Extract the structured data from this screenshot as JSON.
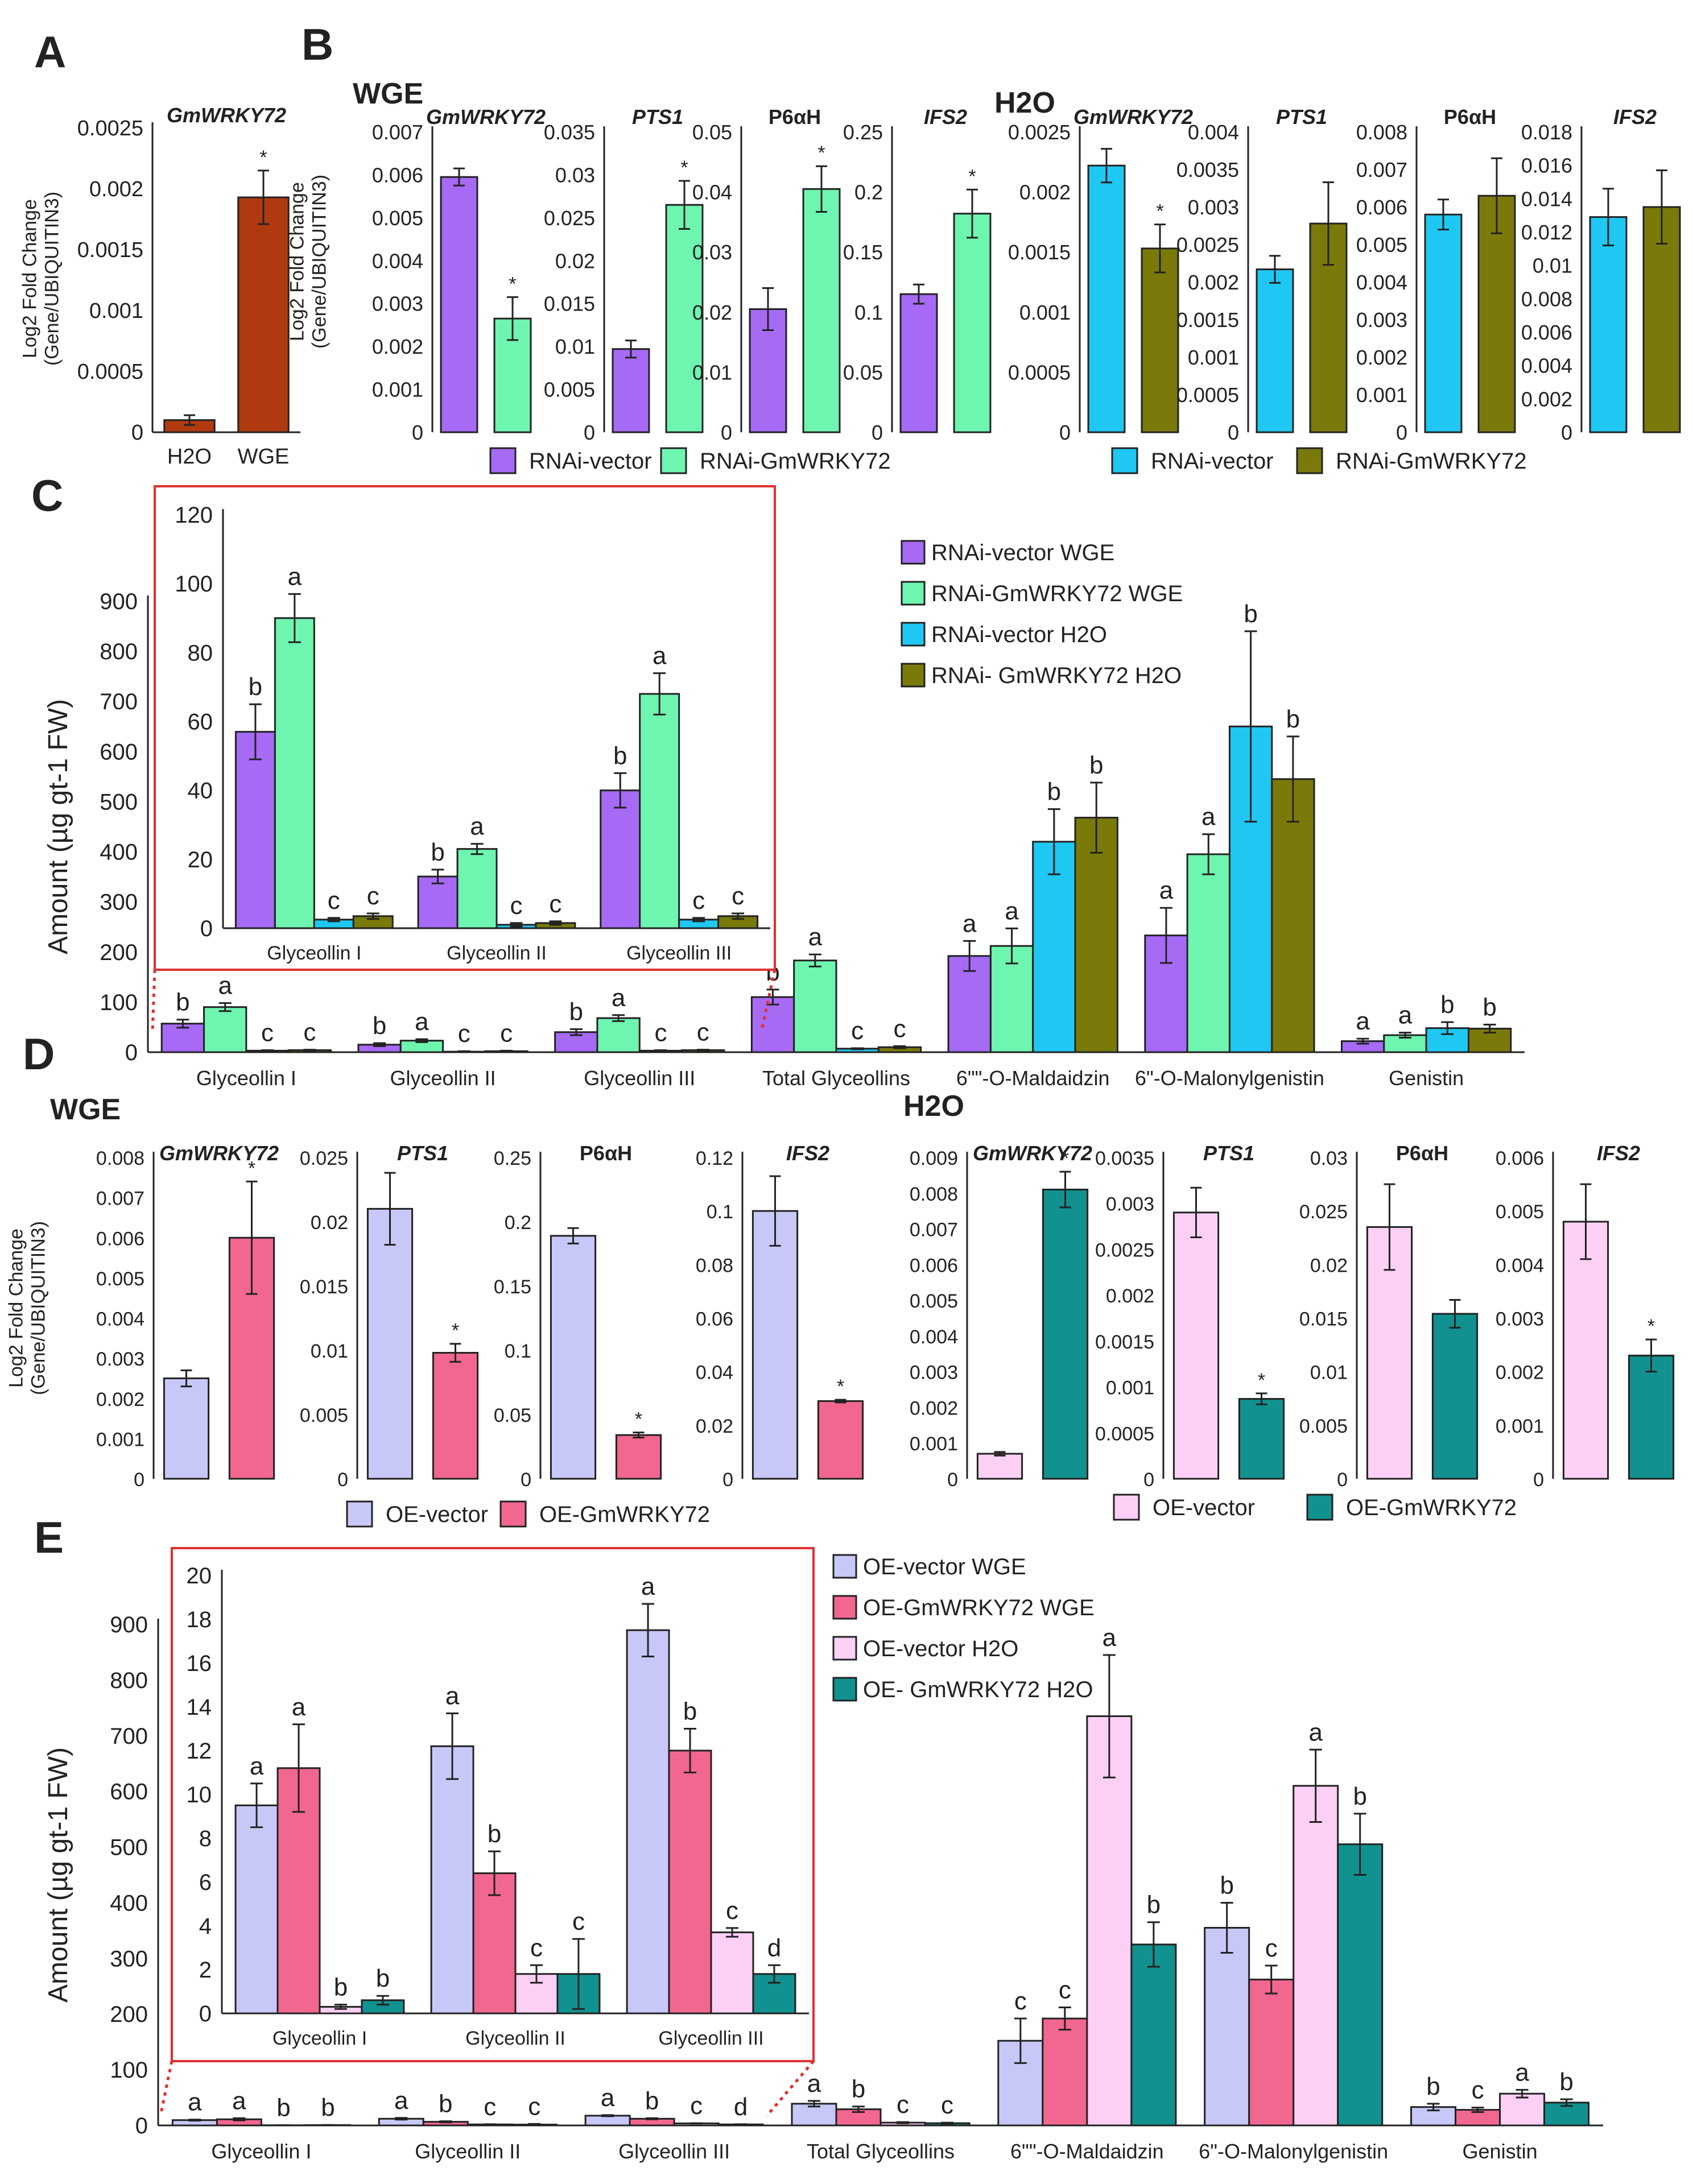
{
  "colors": {
    "axis": "#222222",
    "dotted": "#e03030",
    "sig": "#666666"
  },
  "chart_data": [
    {
      "id": "A",
      "type": "bar",
      "panel": "A",
      "ylabel": "Log2 Fold Change\n(Gene/UBIQUITIN3)",
      "title": "GmWRKY72",
      "title_italic": true,
      "categories": [
        "H2O",
        "WGE"
      ],
      "values": [
        0.0001,
        0.00193
      ],
      "errors": [
        4e-05,
        0.00022
      ],
      "colors": [
        "#b03a10",
        "#b03a10"
      ],
      "sig": [
        "",
        "*"
      ],
      "ylim": [
        0,
        0.0025
      ],
      "yticks": [
        "0",
        "0.0005",
        "0.001",
        "0.0015",
        "0.002",
        "0.0025"
      ]
    },
    {
      "id": "B_WGE_GmWRKY72",
      "type": "bar",
      "panel": "B",
      "header": "WGE",
      "title": "GmWRKY72",
      "title_italic": true,
      "ylabel": "Log2 Fold Change\n(Gene/UBIQUITIN3)",
      "values": [
        0.00595,
        0.00265
      ],
      "errors": [
        0.0002,
        0.0005
      ],
      "colors": [
        "#a66af5",
        "#6ef5b0"
      ],
      "sig": [
        "",
        "*"
      ],
      "ylim": [
        0,
        0.007
      ],
      "yticks": [
        "0",
        "0.001",
        "0.002",
        "0.003",
        "0.004",
        "0.005",
        "0.006",
        "0.007"
      ]
    },
    {
      "id": "B_WGE_PTS1",
      "type": "bar",
      "panel": "B",
      "title": "PTS1",
      "title_italic": true,
      "values": [
        0.0097,
        0.0265
      ],
      "errors": [
        0.001,
        0.0028
      ],
      "colors": [
        "#a66af5",
        "#6ef5b0"
      ],
      "sig": [
        "",
        "*"
      ],
      "ylim": [
        0,
        0.035
      ],
      "yticks": [
        "0",
        "0.005",
        "0.01",
        "0.015",
        "0.02",
        "0.025",
        "0.03",
        "0.035"
      ]
    },
    {
      "id": "B_WGE_P6aH",
      "type": "bar",
      "panel": "B",
      "title": "P6αH",
      "title_italic": false,
      "values": [
        0.0205,
        0.0405
      ],
      "errors": [
        0.0035,
        0.0038
      ],
      "colors": [
        "#a66af5",
        "#6ef5b0"
      ],
      "sig": [
        "",
        "*"
      ],
      "ylim": [
        0,
        0.05
      ],
      "yticks": [
        "0",
        "0.01",
        "0.02",
        "0.03",
        "0.04",
        "0.05"
      ]
    },
    {
      "id": "B_WGE_IFS2",
      "type": "bar",
      "panel": "B",
      "title": "IFS2",
      "title_italic": true,
      "values": [
        0.115,
        0.182
      ],
      "errors": [
        0.008,
        0.02
      ],
      "colors": [
        "#a66af5",
        "#6ef5b0"
      ],
      "sig": [
        "",
        "*"
      ],
      "ylim": [
        0,
        0.25
      ],
      "yticks": [
        "0",
        "0.05",
        "0.1",
        "0.15",
        "0.2",
        "0.25"
      ]
    },
    {
      "id": "B_H2O_GmWRKY72",
      "type": "bar",
      "panel": "B",
      "header": "H2O",
      "title": "GmWRKY72",
      "title_italic": true,
      "values": [
        0.00222,
        0.00153
      ],
      "errors": [
        0.00014,
        0.0002
      ],
      "colors": [
        "#1fc8f2",
        "#7a7a0a"
      ],
      "sig": [
        "",
        "*"
      ],
      "ylim": [
        0,
        0.0025
      ],
      "yticks": [
        "0",
        "0.0005",
        "0.001",
        "0.0015",
        "0.002",
        "0.0025"
      ]
    },
    {
      "id": "B_H2O_PTS1",
      "type": "bar",
      "panel": "B",
      "title": "PTS1",
      "title_italic": true,
      "values": [
        0.00217,
        0.00278
      ],
      "errors": [
        0.00018,
        0.00055
      ],
      "colors": [
        "#1fc8f2",
        "#7a7a0a"
      ],
      "sig": [
        "",
        ""
      ],
      "ylim": [
        0,
        0.004
      ],
      "yticks": [
        "0",
        "0.0005",
        "0.001",
        "0.0015",
        "0.002",
        "0.0025",
        "0.003",
        "0.0035",
        "0.004"
      ]
    },
    {
      "id": "B_H2O_P6aH",
      "type": "bar",
      "panel": "B",
      "title": "P6αH",
      "title_italic": false,
      "values": [
        0.0058,
        0.0063
      ],
      "errors": [
        0.0004,
        0.001
      ],
      "colors": [
        "#1fc8f2",
        "#7a7a0a"
      ],
      "sig": [
        "",
        ""
      ],
      "ylim": [
        0,
        0.008
      ],
      "yticks": [
        "0",
        "0.001",
        "0.002",
        "0.003",
        "0.004",
        "0.005",
        "0.006",
        "0.007",
        "0.008"
      ]
    },
    {
      "id": "B_H2O_IFS2",
      "type": "bar",
      "panel": "B",
      "title": "IFS2",
      "title_italic": true,
      "values": [
        0.0129,
        0.0135
      ],
      "errors": [
        0.0017,
        0.0022
      ],
      "colors": [
        "#1fc8f2",
        "#7a7a0a"
      ],
      "sig": [
        "",
        ""
      ],
      "ylim": [
        0,
        0.018
      ],
      "yticks": [
        "0",
        "0.002",
        "0.004",
        "0.006",
        "0.008",
        "0.01",
        "0.012",
        "0.014",
        "0.016",
        "0.018"
      ]
    },
    {
      "id": "C_main",
      "type": "bar",
      "panel": "C",
      "ylabel": "Amount (µg gt-1 FW)",
      "categories": [
        "Glyceollin I",
        "Glyceollin II",
        "Glyceollin III",
        "Total Glyceollins",
        "6\"\"-O-Maldaidzin",
        "6\"-O-Malonylgenistin",
        "Genistin"
      ],
      "series": [
        {
          "name": "RNAi-vector WGE",
          "color": "#a66af5",
          "values": [
            57,
            15,
            40,
            110,
            192,
            233,
            22
          ],
          "errors": [
            8,
            3,
            6,
            15,
            30,
            55,
            5
          ],
          "sig": [
            "b",
            "b",
            "b",
            "b",
            "a",
            "a",
            "a"
          ]
        },
        {
          "name": "RNAi-GmWRKY72 WGE",
          "color": "#6ef5b0",
          "values": [
            90,
            23,
            68,
            183,
            212,
            395,
            34
          ],
          "errors": [
            8,
            3,
            6,
            12,
            35,
            40,
            5
          ],
          "sig": [
            "a",
            "a",
            "a",
            "a",
            "a",
            "a",
            "a"
          ]
        },
        {
          "name": "RNAi-vector H2O",
          "color": "#1fc8f2",
          "values": [
            3,
            1,
            3,
            7,
            420,
            650,
            48
          ],
          "errors": [
            1,
            1,
            1,
            1,
            65,
            190,
            12
          ],
          "sig": [
            "c",
            "c",
            "c",
            "c",
            "b",
            "b",
            "b"
          ]
        },
        {
          "name": "RNAi- GmWRKY72 H2O",
          "color": "#7a7a0a",
          "values": [
            4,
            2,
            4,
            10,
            468,
            545,
            47
          ],
          "errors": [
            1,
            1,
            1,
            2,
            70,
            85,
            8
          ],
          "sig": [
            "c",
            "c",
            "c",
            "c",
            "b",
            "b",
            "b"
          ]
        }
      ],
      "ylim": [
        0,
        900
      ],
      "yticks": [
        "0",
        "100",
        "200",
        "300",
        "400",
        "500",
        "600",
        "700",
        "800",
        "900"
      ]
    },
    {
      "id": "C_inset",
      "type": "bar",
      "panel": "C",
      "categories": [
        "Glyceollin I",
        "Glyceollin II",
        "Glyceollin III"
      ],
      "series": [
        {
          "name": "RNAi-vector WGE",
          "color": "#a66af5",
          "values": [
            57,
            15,
            40
          ],
          "errors": [
            8,
            2,
            5
          ],
          "sig": [
            "b",
            "b",
            "b"
          ]
        },
        {
          "name": "RNAi-GmWRKY72 WGE",
          "color": "#6ef5b0",
          "values": [
            90,
            23,
            68
          ],
          "errors": [
            7,
            1.5,
            6
          ],
          "sig": [
            "a",
            "a",
            "a"
          ]
        },
        {
          "name": "RNAi-vector H2O",
          "color": "#1fc8f2",
          "values": [
            2.5,
            1,
            2.5
          ],
          "errors": [
            0.5,
            0.5,
            0.5
          ],
          "sig": [
            "c",
            "c",
            "c"
          ]
        },
        {
          "name": "RNAi- GmWRKY72 H2O",
          "color": "#7a7a0a",
          "values": [
            3.5,
            1.5,
            3.5
          ],
          "errors": [
            0.8,
            0.5,
            0.8
          ],
          "sig": [
            "c",
            "c",
            "c"
          ]
        }
      ],
      "ylim": [
        0,
        120
      ],
      "yticks": [
        "0",
        "20",
        "40",
        "60",
        "80",
        "100",
        "120"
      ]
    },
    {
      "id": "D_WGE_GmWRKY72",
      "type": "bar",
      "panel": "D",
      "header": "WGE",
      "title": "GmWRKY72",
      "title_italic": true,
      "ylabel": "Log2 Fold Change\n(Gene/UBIQUITIN3)",
      "values": [
        0.0025,
        0.006
      ],
      "errors": [
        0.0002,
        0.0014
      ],
      "colors": [
        "#c8c8f8",
        "#f2678f"
      ],
      "sig": [
        "",
        "*"
      ],
      "ylim": [
        0,
        0.008
      ],
      "yticks": [
        "0",
        "0.001",
        "0.002",
        "0.003",
        "0.004",
        "0.005",
        "0.006",
        "0.007",
        "0.008"
      ]
    },
    {
      "id": "D_WGE_PTS1",
      "type": "bar",
      "panel": "D",
      "title": "PTS1",
      "title_italic": true,
      "values": [
        0.021,
        0.0098
      ],
      "errors": [
        0.0028,
        0.0007
      ],
      "colors": [
        "#c8c8f8",
        "#f2678f"
      ],
      "sig": [
        "",
        "*"
      ],
      "ylim": [
        0,
        0.025
      ],
      "yticks": [
        "0",
        "0.005",
        "0.01",
        "0.015",
        "0.02",
        "0.025"
      ]
    },
    {
      "id": "D_WGE_P6aH",
      "type": "bar",
      "panel": "D",
      "title": "P6αH",
      "title_italic": false,
      "values": [
        0.189,
        0.034
      ],
      "errors": [
        0.006,
        0.002
      ],
      "colors": [
        "#c8c8f8",
        "#f2678f"
      ],
      "sig": [
        "",
        "*"
      ],
      "ylim": [
        0,
        0.25
      ],
      "yticks": [
        "0",
        "0.05",
        "0.1",
        "0.15",
        "0.2",
        "0.25"
      ]
    },
    {
      "id": "D_WGE_IFS2",
      "type": "bar",
      "panel": "D",
      "title": "IFS2",
      "title_italic": true,
      "values": [
        0.1,
        0.029
      ],
      "errors": [
        0.013,
        0.0005
      ],
      "colors": [
        "#c8c8f8",
        "#f2678f"
      ],
      "sig": [
        "",
        "*"
      ],
      "ylim": [
        0,
        0.12
      ],
      "yticks": [
        "0",
        "0.02",
        "0.04",
        "0.06",
        "0.08",
        "0.1",
        "0.12"
      ]
    },
    {
      "id": "D_H2O_GmWRKY72",
      "type": "bar",
      "panel": "D",
      "header": "H2O",
      "title": "GmWRKY72",
      "title_italic": true,
      "values": [
        0.0007,
        0.0081
      ],
      "errors": [
        5e-05,
        0.0005
      ],
      "colors": [
        "#fbd0f4",
        "#11918f"
      ],
      "sig": [
        "",
        "*"
      ],
      "ylim": [
        0,
        0.009
      ],
      "yticks": [
        "0",
        "0.001",
        "0.002",
        "0.003",
        "0.004",
        "0.005",
        "0.006",
        "0.007",
        "0.008",
        "0.009"
      ]
    },
    {
      "id": "D_H2O_PTS1",
      "type": "bar",
      "panel": "D",
      "title": "PTS1",
      "title_italic": true,
      "values": [
        0.0029,
        0.00087
      ],
      "errors": [
        0.00027,
        6e-05
      ],
      "colors": [
        "#fbd0f4",
        "#11918f"
      ],
      "sig": [
        "",
        "*"
      ],
      "ylim": [
        0,
        0.0035
      ],
      "yticks": [
        "0",
        "0.0005",
        "0.001",
        "0.0015",
        "0.002",
        "0.0025",
        "0.003",
        "0.0035"
      ]
    },
    {
      "id": "D_H2O_P6aH",
      "type": "bar",
      "panel": "D",
      "title": "P6αH",
      "title_italic": false,
      "values": [
        0.0235,
        0.0154
      ],
      "errors": [
        0.004,
        0.0013
      ],
      "colors": [
        "#fbd0f4",
        "#11918f"
      ],
      "sig": [
        "",
        ""
      ],
      "ylim": [
        0,
        0.03
      ],
      "yticks": [
        "0",
        "0.005",
        "0.01",
        "0.015",
        "0.02",
        "0.025",
        "0.03"
      ]
    },
    {
      "id": "D_H2O_IFS2",
      "type": "bar",
      "panel": "D",
      "title": "IFS2",
      "title_italic": true,
      "values": [
        0.0048,
        0.0023
      ],
      "errors": [
        0.0007,
        0.0003
      ],
      "colors": [
        "#fbd0f4",
        "#11918f"
      ],
      "sig": [
        "",
        "*"
      ],
      "ylim": [
        0,
        0.006
      ],
      "yticks": [
        "0",
        "0.001",
        "0.002",
        "0.003",
        "0.004",
        "0.005",
        "0.006"
      ]
    },
    {
      "id": "E_main",
      "type": "bar",
      "panel": "E",
      "ylabel": "Amount (µg gt-1 FW)",
      "categories": [
        "Glyceollin I",
        "Glyceollin II",
        "Glyceollin III",
        "Total Glyceollins",
        "6\"\"-O-Maldaidzin",
        "6\"-O-Malonylgenistin",
        "Genistin"
      ],
      "series": [
        {
          "name": "OE-vector WGE",
          "color": "#c8c8f8",
          "values": [
            9.5,
            12,
            17.5,
            39,
            152,
            355,
            33
          ],
          "errors": [
            1,
            1.5,
            1,
            5,
            40,
            45,
            6
          ],
          "sig": [
            "a",
            "a",
            "a",
            "a",
            "c",
            "b",
            "b"
          ]
        },
        {
          "name": "OE-GmWRKY72 WGE",
          "color": "#f2678f",
          "values": [
            11,
            6.5,
            12,
            29,
            192,
            262,
            28
          ],
          "errors": [
            2,
            1,
            1,
            5,
            20,
            25,
            4
          ],
          "sig": [
            "a",
            "b",
            "b",
            "b",
            "c",
            "c",
            "c"
          ]
        },
        {
          "name": "OE-vector H2O",
          "color": "#fbd0f4",
          "values": [
            0.3,
            1.8,
            3.7,
            5,
            735,
            610,
            57
          ],
          "errors": [
            0.1,
            0.4,
            0.2,
            1,
            110,
            65,
            7
          ],
          "sig": [
            "b",
            "c",
            "c",
            "c",
            "a",
            "a",
            "a"
          ]
        },
        {
          "name": "OE- GmWRKY72 H2O",
          "color": "#11918f",
          "values": [
            0.6,
            1.5,
            1.8,
            4,
            325,
            505,
            41
          ],
          "errors": [
            0.2,
            1.2,
            0.4,
            1,
            40,
            55,
            6
          ],
          "sig": [
            "b",
            "c",
            "d",
            "c",
            "b",
            "b",
            "b"
          ]
        }
      ],
      "ylim": [
        0,
        900
      ],
      "yticks": [
        "0",
        "100",
        "200",
        "300",
        "400",
        "500",
        "600",
        "700",
        "800",
        "900"
      ]
    },
    {
      "id": "E_inset",
      "type": "bar",
      "panel": "E",
      "categories": [
        "Glyceollin I",
        "Glyceollin II",
        "Glyceollin III"
      ],
      "series": [
        {
          "name": "OE-vector WGE",
          "color": "#c8c8f8",
          "values": [
            9.5,
            12.2,
            17.5
          ],
          "errors": [
            1,
            1.5,
            1.2
          ],
          "sig": [
            "a",
            "a",
            "a"
          ]
        },
        {
          "name": "OE-GmWRKY72 WGE",
          "color": "#f2678f",
          "values": [
            11.2,
            6.4,
            12
          ],
          "errors": [
            2,
            1,
            1
          ],
          "sig": [
            "a",
            "b",
            "b"
          ]
        },
        {
          "name": "OE-vector H2O",
          "color": "#fbd0f4",
          "values": [
            0.3,
            1.8,
            3.7
          ],
          "errors": [
            0.1,
            0.4,
            0.2
          ],
          "sig": [
            "b",
            "c",
            "c"
          ]
        },
        {
          "name": "OE- GmWRKY72 H2O",
          "color": "#11918f",
          "values": [
            0.6,
            1.8,
            1.8
          ],
          "errors": [
            0.2,
            1.6,
            0.4
          ],
          "sig": [
            "b",
            "c",
            "d"
          ]
        }
      ],
      "ylim": [
        0,
        20
      ],
      "yticks": [
        "0",
        "2",
        "4",
        "6",
        "8",
        "10",
        "12",
        "14",
        "16",
        "18",
        "20"
      ]
    }
  ],
  "labels": {
    "panel_A": "A",
    "panel_B": "B",
    "panel_C": "C",
    "panel_D": "D",
    "panel_E": "E",
    "header_B_WGE": "WGE",
    "header_B_H2O": "H2O",
    "header_D_WGE": "WGE",
    "header_D_H2O": "H2O"
  },
  "legends": {
    "B_WGE": [
      {
        "name": "RNAi-vector",
        "color": "#a66af5"
      },
      {
        "name": "RNAi-GmWRKY72",
        "color": "#6ef5b0"
      }
    ],
    "B_H2O": [
      {
        "name": "RNAi-vector",
        "color": "#1fc8f2"
      },
      {
        "name": "RNAi-GmWRKY72",
        "color": "#7a7a0a"
      }
    ],
    "D_WGE": [
      {
        "name": "OE-vector",
        "color": "#c8c8f8"
      },
      {
        "name": "OE-GmWRKY72",
        "color": "#f2678f"
      }
    ],
    "D_H2O": [
      {
        "name": "OE-vector",
        "color": "#fbd0f4"
      },
      {
        "name": "OE-GmWRKY72",
        "color": "#11918f"
      }
    ]
  }
}
